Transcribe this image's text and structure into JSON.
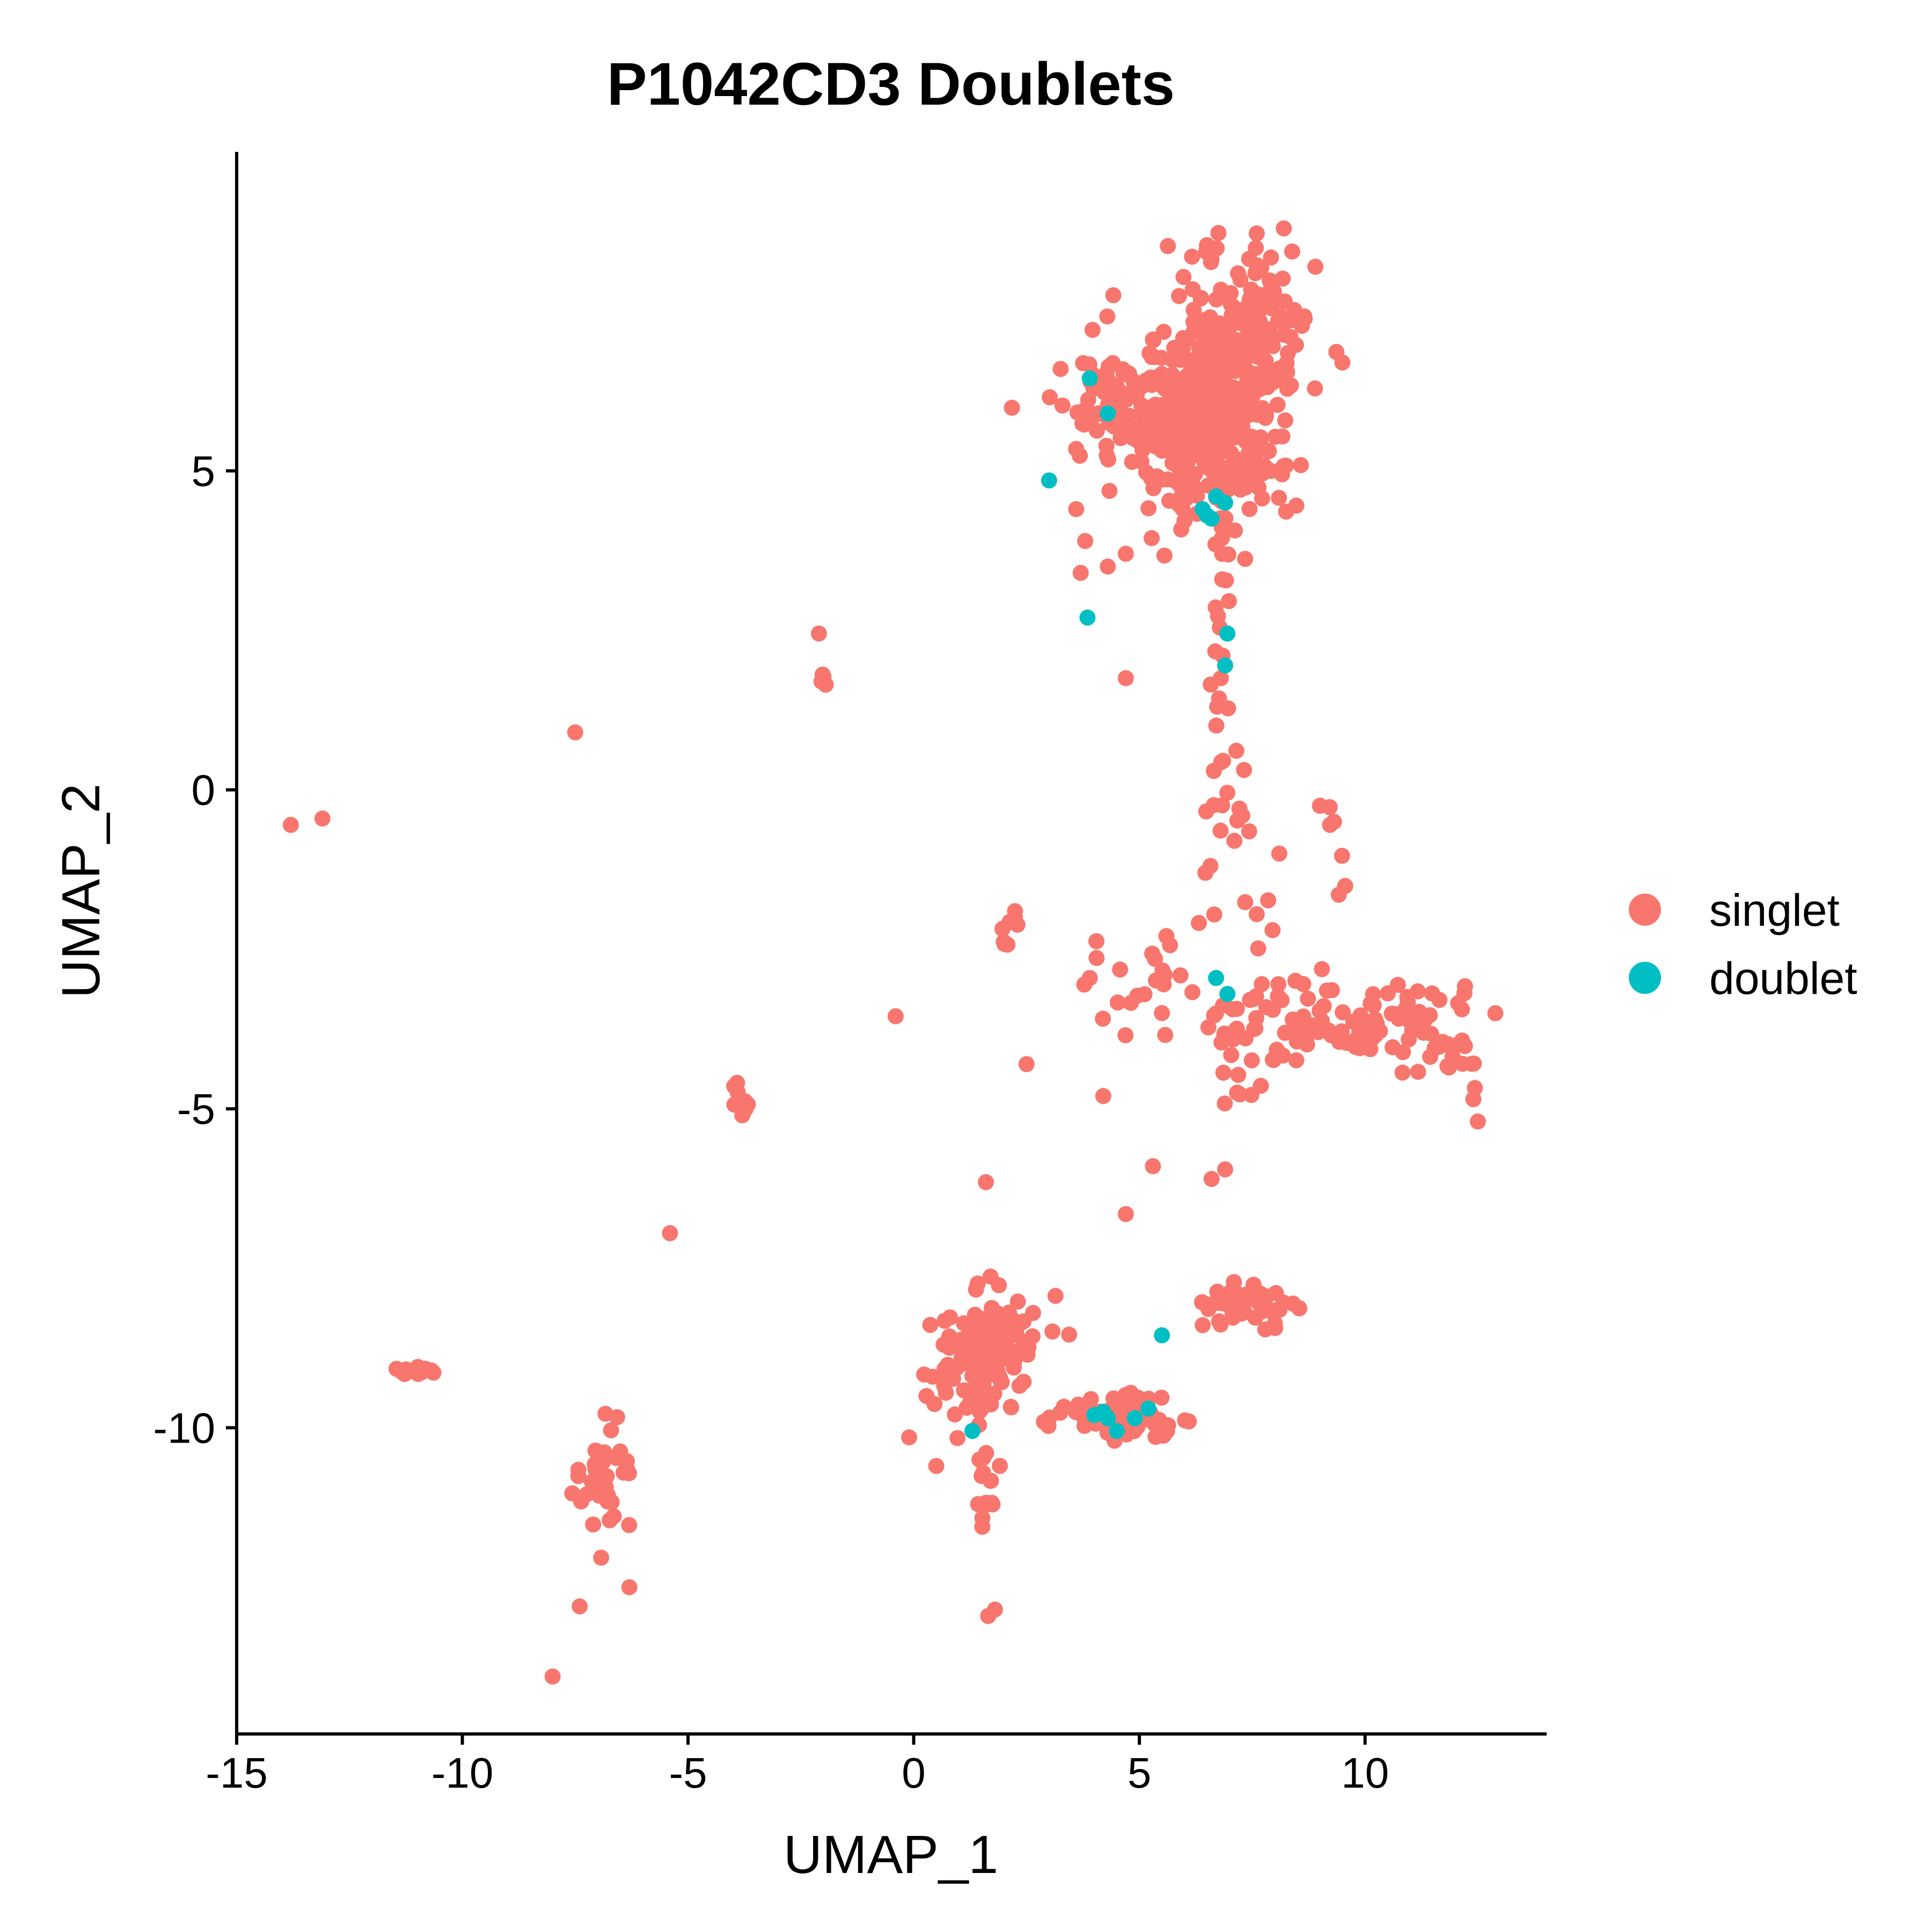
{
  "chart_data": {
    "type": "scatter",
    "title": "P1042CD3 Doublets",
    "xlabel": "UMAP_1",
    "ylabel": "UMAP_2",
    "xlim": [
      -15,
      14
    ],
    "ylim": [
      -14.8,
      10
    ],
    "xticks": [
      "-15",
      "-10",
      "-5",
      "0",
      "5",
      "10"
    ],
    "yticks": [
      "-10",
      "-5",
      "0",
      "5"
    ],
    "grid": false,
    "legend_position": "right",
    "series": [
      {
        "name": "singlet",
        "color": "#F8766D",
        "clusters": [
          {
            "cx": 6.6,
            "cy": 6.0,
            "sx": 0.9,
            "sy": 0.9,
            "n": 420
          },
          {
            "cx": 7.6,
            "cy": 7.4,
            "sx": 0.6,
            "sy": 0.6,
            "n": 90
          },
          {
            "cx": 4.5,
            "cy": 6.0,
            "sx": 0.8,
            "sy": 0.4,
            "n": 70
          },
          {
            "cx": 6.8,
            "cy": 3.5,
            "sx": 0.1,
            "sy": 1.1,
            "n": 22
          },
          {
            "cx": 6.9,
            "cy": 0.6,
            "sx": 0.25,
            "sy": 0.8,
            "n": 14
          },
          {
            "cx": 7.0,
            "cy": -1.3,
            "sx": 0.4,
            "sy": 0.6,
            "n": 10
          },
          {
            "cx": 9.3,
            "cy": -0.9,
            "sx": 0.15,
            "sy": 0.4,
            "n": 6
          },
          {
            "cx": 5.2,
            "cy": -3.1,
            "sx": 0.8,
            "sy": 0.4,
            "n": 22
          },
          {
            "cx": 9.2,
            "cy": -3.6,
            "sx": 1.3,
            "sy": 0.35,
            "n": 95
          },
          {
            "cx": 11.6,
            "cy": -3.9,
            "sx": 0.7,
            "sy": 0.4,
            "n": 30
          },
          {
            "cx": 7.3,
            "cy": -4.6,
            "sx": 0.3,
            "sy": 0.35,
            "n": 8
          },
          {
            "cx": 1.5,
            "cy": -8.9,
            "sx": 0.55,
            "sy": 0.45,
            "n": 130
          },
          {
            "cx": 2.4,
            "cy": -8.5,
            "sx": 0.4,
            "sy": 0.3,
            "n": 20
          },
          {
            "cx": 4.2,
            "cy": -9.8,
            "sx": 0.65,
            "sy": 0.15,
            "n": 55
          },
          {
            "cx": 5.0,
            "cy": -9.9,
            "sx": 0.3,
            "sy": 0.15,
            "n": 25
          },
          {
            "cx": 1.6,
            "cy": -11.0,
            "sx": 0.12,
            "sy": 0.45,
            "n": 16
          },
          {
            "cx": 7.5,
            "cy": -8.05,
            "sx": 0.5,
            "sy": 0.15,
            "n": 55
          },
          {
            "cx": -6.9,
            "cy": -10.9,
            "sx": 0.3,
            "sy": 0.5,
            "n": 38
          },
          {
            "cx": -11.1,
            "cy": -9.1,
            "sx": 0.22,
            "sy": 0.04,
            "n": 22
          },
          {
            "cx": -3.8,
            "cy": -4.9,
            "sx": 0.08,
            "sy": 0.15,
            "n": 10
          },
          {
            "cx": 1.95,
            "cy": -2.35,
            "sx": 0.08,
            "sy": 0.15,
            "n": 4
          },
          {
            "cx": 2.25,
            "cy": -1.9,
            "sx": 0.05,
            "sy": 0.1,
            "n": 4
          },
          {
            "cx": -2.0,
            "cy": 1.7,
            "sx": 0.05,
            "sy": 0.07,
            "n": 4
          }
        ],
        "points": [
          [
            -13.8,
            -0.55
          ],
          [
            -13.1,
            -0.45
          ],
          [
            -7.5,
            0.9
          ],
          [
            -2.1,
            2.45
          ],
          [
            -0.4,
            -3.55
          ],
          [
            -5.4,
            -6.95
          ],
          [
            -8.0,
            -13.9
          ],
          [
            -7.4,
            -12.8
          ],
          [
            -6.3,
            -12.5
          ],
          [
            1.6,
            -6.15
          ],
          [
            0.5,
            -10.6
          ],
          [
            -0.1,
            -10.15
          ],
          [
            1.65,
            -12.95
          ],
          [
            1.8,
            -12.85
          ],
          [
            4.7,
            1.75
          ],
          [
            3.6,
            4.4
          ],
          [
            3.8,
            3.9
          ],
          [
            3.7,
            3.4
          ],
          [
            4.3,
            3.5
          ],
          [
            4.7,
            3.7
          ],
          [
            8.2,
            8.8
          ],
          [
            8.9,
            8.2
          ],
          [
            2.5,
            -4.3
          ],
          [
            4.2,
            -4.8
          ],
          [
            3.9,
            -2.95
          ],
          [
            5.5,
            -3.5
          ],
          [
            5.3,
            -5.9
          ],
          [
            4.7,
            -6.65
          ],
          [
            6.6,
            -6.1
          ],
          [
            6.9,
            -5.95
          ],
          [
            12.4,
            -4.85
          ],
          [
            12.5,
            -5.2
          ],
          [
            9.0,
            -0.25
          ],
          [
            8.1,
            -1.0
          ],
          [
            7.95,
            -2.2
          ],
          [
            7.6,
            -1.95
          ]
        ]
      },
      {
        "name": "doublet",
        "color": "#00BFC4",
        "points": [
          [
            3.0,
            4.85
          ],
          [
            3.9,
            6.45
          ],
          [
            4.3,
            5.9
          ],
          [
            6.4,
            4.4
          ],
          [
            6.5,
            4.3
          ],
          [
            6.7,
            4.6
          ],
          [
            6.9,
            4.5
          ],
          [
            6.6,
            4.25
          ],
          [
            3.85,
            2.7
          ],
          [
            6.95,
            2.45
          ],
          [
            6.9,
            1.95
          ],
          [
            6.7,
            -2.95
          ],
          [
            6.95,
            -3.2
          ],
          [
            1.3,
            -10.05
          ],
          [
            5.5,
            -8.55
          ],
          [
            4.0,
            -9.8
          ],
          [
            4.3,
            -9.85
          ],
          [
            4.5,
            -10.05
          ],
          [
            4.9,
            -9.85
          ],
          [
            5.2,
            -9.7
          ],
          [
            4.2,
            -9.75
          ]
        ]
      }
    ]
  }
}
